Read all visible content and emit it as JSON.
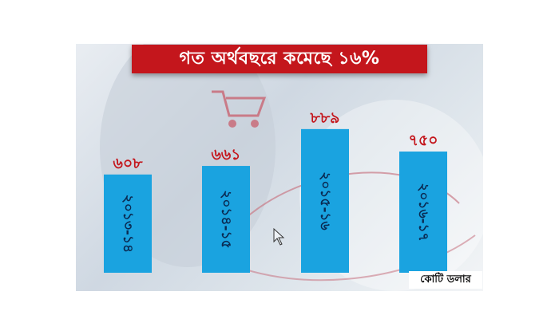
{
  "chart_data": {
    "type": "bar",
    "title": "গত অর্থবছরে কমেছে ১৬%",
    "categories": [
      "২০১৩-১৪",
      "২০১৪-১৫",
      "২০১৫-১৬",
      "২০১৬-১৭"
    ],
    "values": [
      608,
      661,
      889,
      750
    ],
    "value_labels": [
      "৬০৮",
      "৬৬১",
      "৮৮৯",
      "৭৫০"
    ],
    "unit": "কোটি ডলার",
    "ylim": [
      0,
      1000
    ],
    "bar_color": "#1aa3e0",
    "label_color": "#c4161c",
    "title_bg": "#c4161c",
    "grid": false,
    "legend": "none"
  }
}
